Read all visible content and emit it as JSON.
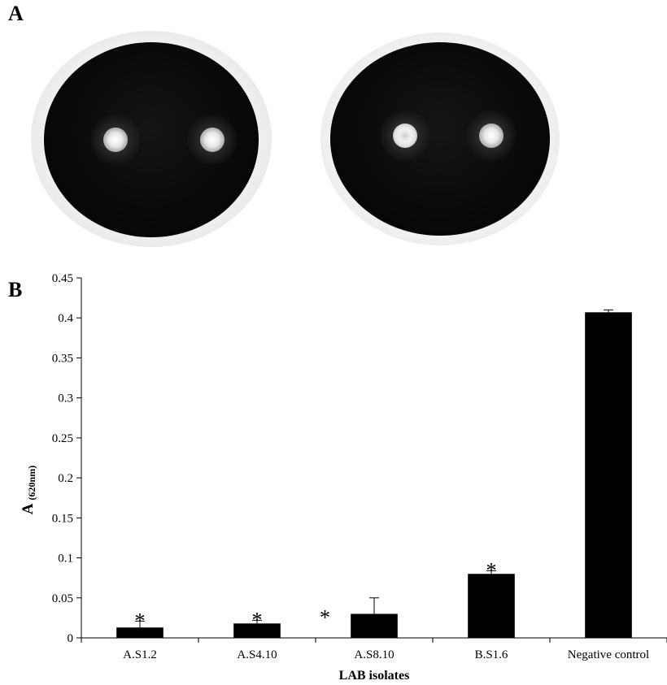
{
  "panels": {
    "a_label": "A",
    "b_label": "B"
  },
  "chart_data": {
    "type": "bar",
    "categories": [
      "A.S1.2",
      "A.S4.10",
      "A.S8.10",
      "B.S1.6",
      "Negative control"
    ],
    "values": [
      0.013,
      0.018,
      0.03,
      0.08,
      0.407
    ],
    "error_upper": [
      0.008,
      0.004,
      0.02,
      0.004,
      0.003
    ],
    "significant": [
      true,
      true,
      true,
      true,
      false
    ],
    "significance_marker": "*",
    "xlabel": "LAB isolates",
    "ylabel_main": "A",
    "ylabel_sub": "(620nm)",
    "ylim": [
      0,
      0.45
    ],
    "yticks": [
      0,
      0.05,
      0.1,
      0.15,
      0.2,
      0.25,
      0.3,
      0.35,
      0.4,
      0.45
    ],
    "ytick_labels": [
      "0",
      "0.05",
      "0.1",
      "0.15",
      "0.2",
      "0.25",
      "0.3",
      "0.35",
      "0.4",
      "0.45"
    ],
    "bar_color": "#000000",
    "grid": false,
    "legend": "none"
  }
}
